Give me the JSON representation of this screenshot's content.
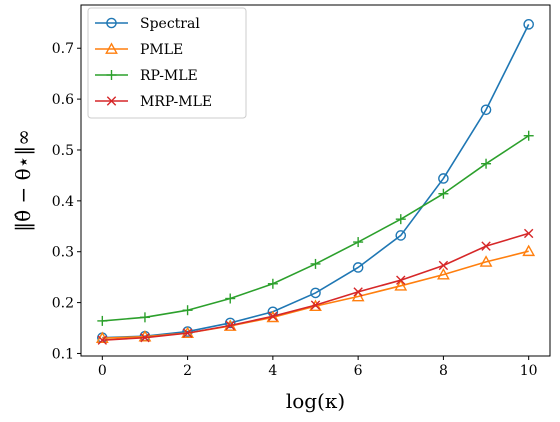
{
  "chart_data": {
    "type": "line",
    "xlabel": "log(κ)",
    "ylabel": "‖θ̂ − θ⋆‖∞",
    "xlim": [
      -0.5,
      10.5
    ],
    "ylim": [
      0.095,
      0.785
    ],
    "xticks": [
      0,
      2,
      4,
      6,
      8,
      10
    ],
    "yticks": [
      0.1,
      0.2,
      0.3,
      0.4,
      0.5,
      0.6,
      0.7
    ],
    "grid": false,
    "legend_position": "top-left",
    "x": [
      0,
      1,
      2,
      3,
      4,
      5,
      6,
      7,
      8,
      9,
      10
    ],
    "series": [
      {
        "name": "Spectral",
        "color": "#1f77b4",
        "marker": "circle",
        "values": [
          0.131,
          0.134,
          0.143,
          0.16,
          0.182,
          0.219,
          0.269,
          0.332,
          0.444,
          0.579,
          0.747
        ]
      },
      {
        "name": "PMLE",
        "color": "#ff7f0e",
        "marker": "triangle",
        "values": [
          0.13,
          0.133,
          0.14,
          0.154,
          0.171,
          0.193,
          0.212,
          0.233,
          0.255,
          0.28,
          0.301
        ]
      },
      {
        "name": "RP-MLE",
        "color": "#2ca02c",
        "marker": "plus",
        "values": [
          0.164,
          0.171,
          0.185,
          0.208,
          0.237,
          0.276,
          0.319,
          0.364,
          0.414,
          0.473,
          0.528
        ]
      },
      {
        "name": "MRP-MLE",
        "color": "#d62728",
        "marker": "x",
        "values": [
          0.126,
          0.131,
          0.14,
          0.155,
          0.173,
          0.195,
          0.221,
          0.244,
          0.273,
          0.311,
          0.336
        ]
      }
    ]
  }
}
